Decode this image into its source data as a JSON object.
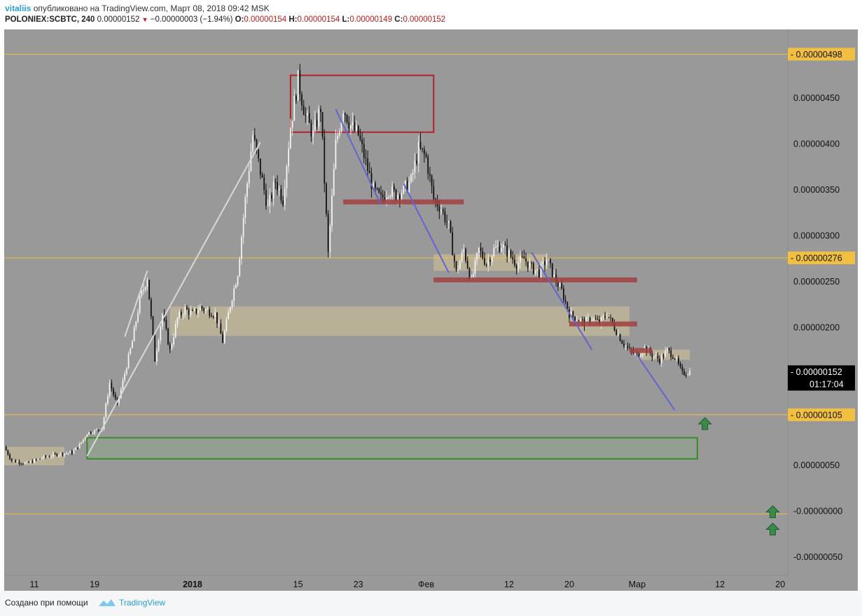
{
  "header": {
    "author": "vitaliis",
    "published_text": "опубликовано на TradingView.com, Март 08, 2018 09:42 MSK",
    "symbol": "POLONIEX:SCBTC, 240",
    "price": "0.00000152",
    "change": "−0.00000003 (−1.94%)",
    "o_label": "O:",
    "o_value": "0.00000154",
    "h_label": "H:",
    "h_value": "0.00000154",
    "l_label": "L:",
    "l_value": "0.00000149",
    "c_label": "C:",
    "c_value": "0.00000152"
  },
  "footer": {
    "credit": "Создано при помощи",
    "brand": "TradingView"
  },
  "chart_data": {
    "type": "candlestick",
    "y_axis": {
      "range": [
        -7e-07,
        5.25e-06
      ],
      "ticks": [
        {
          "value": 4.5e-06,
          "label": "0.00000450"
        },
        {
          "value": 4e-06,
          "label": "0.00000400"
        },
        {
          "value": 3.5e-06,
          "label": "0.00000350"
        },
        {
          "value": 3e-06,
          "label": "0.00000300"
        },
        {
          "value": 2.5e-06,
          "label": "0.00000250"
        },
        {
          "value": 2e-06,
          "label": "0.00000200"
        },
        {
          "value": 5e-07,
          "label": "0.00000050"
        },
        {
          "value": 0.0,
          "label": "-0.00000000"
        },
        {
          "value": -5e-07,
          "label": "-0.00000050"
        }
      ]
    },
    "x_axis": {
      "range": [
        "2017-12-07",
        "2018-03-21"
      ],
      "ticks": [
        {
          "date": "2017-12-11",
          "label": "11",
          "bold": false
        },
        {
          "date": "2017-12-19",
          "label": "19",
          "bold": false
        },
        {
          "date": "2018-01-01",
          "label": "2018",
          "bold": true
        },
        {
          "date": "2018-01-15",
          "label": "15",
          "bold": false
        },
        {
          "date": "2018-01-23",
          "label": "23",
          "bold": false
        },
        {
          "date": "2018-02-01",
          "label": "Фев",
          "bold": false
        },
        {
          "date": "2018-02-12",
          "label": "12",
          "bold": false
        },
        {
          "date": "2018-02-20",
          "label": "20",
          "bold": false
        },
        {
          "date": "2018-03-01",
          "label": "Мар",
          "bold": false
        },
        {
          "date": "2018-03-12",
          "label": "12",
          "bold": false
        },
        {
          "date": "2018-03-20",
          "label": "20",
          "bold": false
        }
      ]
    },
    "horizontal_levels": [
      {
        "value": 4.98e-06,
        "label": "0.00000498"
      },
      {
        "value": 2.76e-06,
        "label": "0.00000276"
      },
      {
        "value": 1.05e-06,
        "label": "0.00000105"
      },
      {
        "value": -3e-08,
        "label": ""
      }
    ],
    "last_price": {
      "value": 1.52e-06,
      "label": "0.00000152",
      "countdown": "01:17:04"
    },
    "price_path": [
      [
        "2017-12-07",
        7e-07
      ],
      [
        "2017-12-08",
        5.5e-07
      ],
      [
        "2017-12-10",
        5.2e-07
      ],
      [
        "2017-12-12",
        5.8e-07
      ],
      [
        "2017-12-14",
        6.2e-07
      ],
      [
        "2017-12-16",
        6.4e-07
      ],
      [
        "2017-12-17",
        7.2e-07
      ],
      [
        "2017-12-18",
        8.5e-07
      ],
      [
        "2017-12-20",
        9e-07
      ],
      [
        "2017-12-21",
        1.4e-06
      ],
      [
        "2017-12-22",
        1.15e-06
      ],
      [
        "2017-12-23",
        1.5e-06
      ],
      [
        "2017-12-24",
        1.85e-06
      ],
      [
        "2017-12-25",
        2.3e-06
      ],
      [
        "2017-12-26",
        2.55e-06
      ],
      [
        "2017-12-27",
        1.65e-06
      ],
      [
        "2017-12-28",
        2.15e-06
      ],
      [
        "2017-12-29",
        1.75e-06
      ],
      [
        "2017-12-30",
        2.1e-06
      ],
      [
        "2017-12-31",
        2.2e-06
      ],
      [
        "2018-01-01",
        2.15e-06
      ],
      [
        "2018-01-02",
        2.22e-06
      ],
      [
        "2018-01-04",
        2.15e-06
      ],
      [
        "2018-01-05",
        1.85e-06
      ],
      [
        "2018-01-06",
        2.25e-06
      ],
      [
        "2018-01-07",
        2.6e-06
      ],
      [
        "2018-01-08",
        3.4e-06
      ],
      [
        "2018-01-09",
        4.1e-06
      ],
      [
        "2018-01-10",
        3.7e-06
      ],
      [
        "2018-01-11",
        3.3e-06
      ],
      [
        "2018-01-12",
        3.6e-06
      ],
      [
        "2018-01-13",
        3.4e-06
      ],
      [
        "2018-01-14",
        4.2e-06
      ],
      [
        "2018-01-15",
        4.7e-06
      ],
      [
        "2018-01-16",
        4.3e-06
      ],
      [
        "2018-01-17",
        4.1e-06
      ],
      [
        "2018-01-18",
        4.4e-06
      ],
      [
        "2018-01-19",
        2.8e-06
      ],
      [
        "2018-01-20",
        4e-06
      ],
      [
        "2018-01-21",
        4.4e-06
      ],
      [
        "2018-01-22",
        4.2e-06
      ],
      [
        "2018-01-23",
        4.1e-06
      ],
      [
        "2018-01-24",
        3.8e-06
      ],
      [
        "2018-01-25",
        3.5e-06
      ],
      [
        "2018-01-26",
        3.4e-06
      ],
      [
        "2018-01-27",
        3.5e-06
      ],
      [
        "2018-01-28",
        3.45e-06
      ],
      [
        "2018-01-29",
        3.5e-06
      ],
      [
        "2018-01-30",
        3.6e-06
      ],
      [
        "2018-01-31",
        3.95e-06
      ],
      [
        "2018-02-01",
        3.85e-06
      ],
      [
        "2018-02-02",
        3.4e-06
      ],
      [
        "2018-02-03",
        3.3e-06
      ],
      [
        "2018-02-04",
        3.1e-06
      ],
      [
        "2018-02-05",
        2.6e-06
      ],
      [
        "2018-02-06",
        2.85e-06
      ],
      [
        "2018-02-07",
        2.5e-06
      ],
      [
        "2018-02-08",
        2.85e-06
      ],
      [
        "2018-02-09",
        2.7e-06
      ],
      [
        "2018-02-10",
        2.85e-06
      ],
      [
        "2018-02-11",
        2.9e-06
      ],
      [
        "2018-02-12",
        2.8e-06
      ],
      [
        "2018-02-13",
        2.7e-06
      ],
      [
        "2018-02-14",
        2.75e-06
      ],
      [
        "2018-02-15",
        2.65e-06
      ],
      [
        "2018-02-16",
        2.6e-06
      ],
      [
        "2018-02-17",
        2.75e-06
      ],
      [
        "2018-02-18",
        2.55e-06
      ],
      [
        "2018-02-19",
        2.4e-06
      ],
      [
        "2018-02-20",
        2.15e-06
      ],
      [
        "2018-02-21",
        2.1e-06
      ],
      [
        "2018-02-22",
        2.05e-06
      ],
      [
        "2018-02-23",
        2.1e-06
      ],
      [
        "2018-02-24",
        2.05e-06
      ],
      [
        "2018-02-25",
        2.15e-06
      ],
      [
        "2018-02-26",
        2e-06
      ],
      [
        "2018-02-27",
        1.85e-06
      ],
      [
        "2018-02-28",
        1.75e-06
      ],
      [
        "2018-03-01",
        1.7e-06
      ],
      [
        "2018-03-02",
        1.78e-06
      ],
      [
        "2018-03-03",
        1.7e-06
      ],
      [
        "2018-03-04",
        1.65e-06
      ],
      [
        "2018-03-05",
        1.75e-06
      ],
      [
        "2018-03-06",
        1.68e-06
      ],
      [
        "2018-03-07",
        1.5e-06
      ],
      [
        "2018-03-08",
        1.52e-06
      ]
    ],
    "drawings": {
      "boxes": [
        {
          "name": "resistance-box-red",
          "from": "2018-01-14",
          "to": "2018-02-02",
          "top": 4.75e-06,
          "bottom": 4.13e-06,
          "stroke": "#b22222",
          "fill": "none"
        },
        {
          "name": "support-box-green",
          "from": "2017-12-18",
          "to": "2018-03-09",
          "top": 8e-07,
          "bottom": 5.7e-07,
          "stroke": "#3a8a2a",
          "fill": "rgba(120,190,110,0.18)"
        },
        {
          "name": "consolidation-zone-left",
          "from": "2017-12-07",
          "to": "2017-12-15",
          "top": 7e-07,
          "bottom": 5e-07,
          "stroke": "none",
          "fill": "rgba(225,205,150,0.45)"
        },
        {
          "name": "consolidation-zone-middle",
          "from": "2017-12-29",
          "to": "2018-02-28",
          "top": 2.23e-06,
          "bottom": 1.91e-06,
          "stroke": "none",
          "fill": "rgba(225,205,150,0.45)"
        },
        {
          "name": "consolidation-zone-upper",
          "from": "2018-02-02",
          "to": "2018-02-17",
          "top": 2.8e-06,
          "bottom": 2.62e-06,
          "stroke": "none",
          "fill": "rgba(225,205,150,0.45)"
        },
        {
          "name": "consolidation-zone-right",
          "from": "2018-03-01",
          "to": "2018-03-08",
          "top": 1.76e-06,
          "bottom": 1.65e-06,
          "stroke": "none",
          "fill": "rgba(225,205,150,0.45)"
        }
      ],
      "bands": [
        {
          "name": "resistance-band-1",
          "from": "2018-01-21",
          "to": "2018-02-06",
          "value": 3.37e-06,
          "color": "#a04040"
        },
        {
          "name": "resistance-band-2",
          "from": "2018-02-02",
          "to": "2018-02-29",
          "value": 2.52e-06,
          "color": "#a04040"
        },
        {
          "name": "resistance-band-3",
          "from": "2018-02-20",
          "to": "2018-03-01",
          "value": 2.04e-06,
          "color": "#a04040"
        },
        {
          "name": "resistance-band-4",
          "from": "2018-02-28",
          "to": "2018-03-03",
          "value": 1.75e-06,
          "color": "#a04040"
        }
      ],
      "trendlines": [
        {
          "name": "trendline-uptrend",
          "from": [
            "2017-12-18",
            6e-07
          ],
          "to": [
            "2018-01-10",
            4.02e-06
          ],
          "color": "#d8d8d8"
        },
        {
          "name": "trendline-uptrend-short",
          "from": [
            "2017-12-23",
            1.9e-06
          ],
          "to": [
            "2017-12-26",
            2.62e-06
          ],
          "color": "#d8d8d8"
        },
        {
          "name": "trendline-down-1",
          "from": [
            "2018-01-20",
            4.38e-06
          ],
          "to": [
            "2018-01-26",
            3.34e-06
          ],
          "color": "#6464d0"
        },
        {
          "name": "trendline-down-2",
          "from": [
            "2018-01-29",
            3.57e-06
          ],
          "to": [
            "2018-02-04",
            2.6e-06
          ],
          "color": "#6464d0"
        },
        {
          "name": "trendline-down-3",
          "from": [
            "2018-02-15",
            2.82e-06
          ],
          "to": [
            "2018-02-23",
            1.76e-06
          ],
          "color": "#6464d0"
        },
        {
          "name": "trendline-down-4",
          "from": [
            "2018-03-01",
            1.7e-06
          ],
          "to": [
            "2018-03-06",
            1.1e-06
          ],
          "color": "#6464d0"
        }
      ],
      "up_arrows": [
        {
          "name": "up-arrow-1",
          "x": "2018-03-10",
          "y": 9.5e-07
        },
        {
          "name": "up-arrow-2",
          "x": "2018-03-19",
          "y": -1e-08
        },
        {
          "name": "up-arrow-3",
          "x": "2018-03-19",
          "y": -2e-07
        }
      ]
    },
    "colors": {
      "plot_background": "#999999",
      "level_line": "#f1c040",
      "level_label_bg": "#f1c040",
      "last_price_bg": "#000000",
      "axis_bg": "#999999"
    }
  }
}
